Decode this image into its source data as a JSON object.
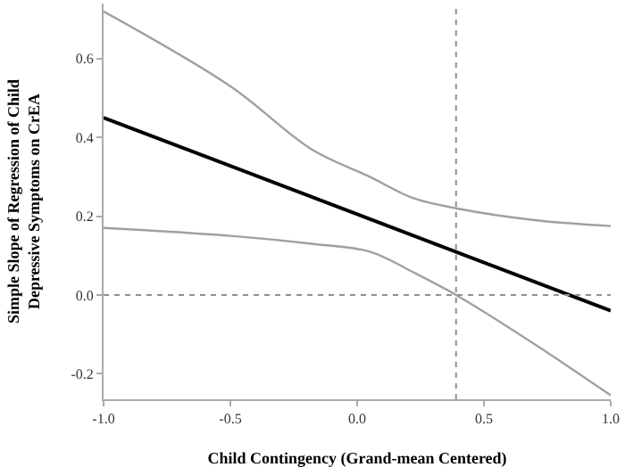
{
  "chart_data": {
    "type": "line",
    "xlabel": "Child Contingency (Grand-mean Centered)",
    "ylabel": "Simple Slope of Regression of Child\nDepressive Symptoms on CrEA",
    "xlim": [
      -1.0,
      1.0
    ],
    "xticks": [
      {
        "value": -1.0,
        "label": "-1.0"
      },
      {
        "value": -0.5,
        "label": "-0.5"
      },
      {
        "value": 0,
        "label": "0.0"
      },
      {
        "value": 0.5,
        "label": "0.5"
      },
      {
        "value": 1.0,
        "label": "1.0"
      }
    ],
    "ylim": [
      -0.265,
      0.74
    ],
    "yticks": [
      {
        "value": -0.2,
        "label": "-0.2"
      },
      {
        "value": 0,
        "label": "0.0"
      },
      {
        "value": 0.2,
        "label": "0.2"
      },
      {
        "value": 0.4,
        "label": "0.4"
      },
      {
        "value": 0.6,
        "label": "0.6"
      }
    ],
    "marker": "none",
    "series": [
      {
        "color": "#a0a0a0",
        "x": [
          -1.0,
          -0.5,
          -0.18,
          0.05,
          0.22,
          0.39,
          0.7,
          1.0
        ],
        "values": [
          0.72,
          0.53,
          0.37,
          0.3,
          0.246,
          0.22,
          0.19,
          0.175
        ]
      },
      {
        "color": "#000000",
        "x": [
          -1.0,
          1.0
        ],
        "values": [
          0.45,
          -0.04
        ]
      },
      {
        "color": "#a0a0a0",
        "x": [
          -1.0,
          -0.5,
          -0.18,
          0.05,
          0.22,
          0.39,
          0.7,
          1.0
        ],
        "values": [
          0.17,
          0.15,
          0.13,
          0.11,
          0.058,
          0.0,
          -0.125,
          -0.255
        ]
      }
    ],
    "ref_lines": [
      {
        "axis": "x",
        "value": 0.39,
        "color": "#909090",
        "line_style": "dotted"
      },
      {
        "axis": "y",
        "value": 0,
        "color": "#909090",
        "line_style": "dotted"
      }
    ]
  }
}
